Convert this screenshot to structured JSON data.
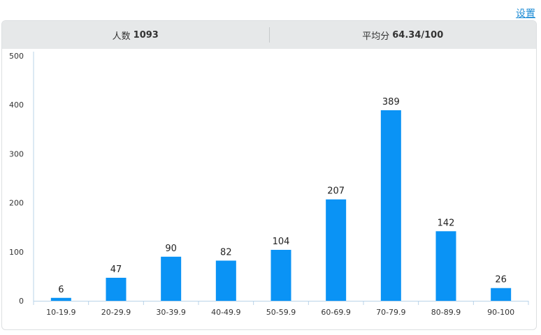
{
  "toolbar": {
    "settings_label": "设置"
  },
  "summary": {
    "count_label": "人数",
    "count_value": "1093",
    "avg_label": "平均分",
    "avg_value": "64.34/100"
  },
  "colors": {
    "bar": "#0a93f5",
    "axis": "#b9d3e8",
    "header_bg": "#e6e8e9",
    "link": "#1a8ad4"
  },
  "chart_data": {
    "type": "bar",
    "categories": [
      "10-19.9",
      "20-29.9",
      "30-39.9",
      "40-49.9",
      "50-59.9",
      "60-69.9",
      "70-79.9",
      "80-89.9",
      "90-100"
    ],
    "values": [
      6,
      47,
      90,
      82,
      104,
      207,
      389,
      142,
      26
    ],
    "yticks": [
      0,
      100,
      200,
      300,
      400,
      500
    ],
    "ylim": [
      0,
      500
    ],
    "title": "",
    "xlabel": "",
    "ylabel": "",
    "grid": false,
    "data_labels": true
  }
}
